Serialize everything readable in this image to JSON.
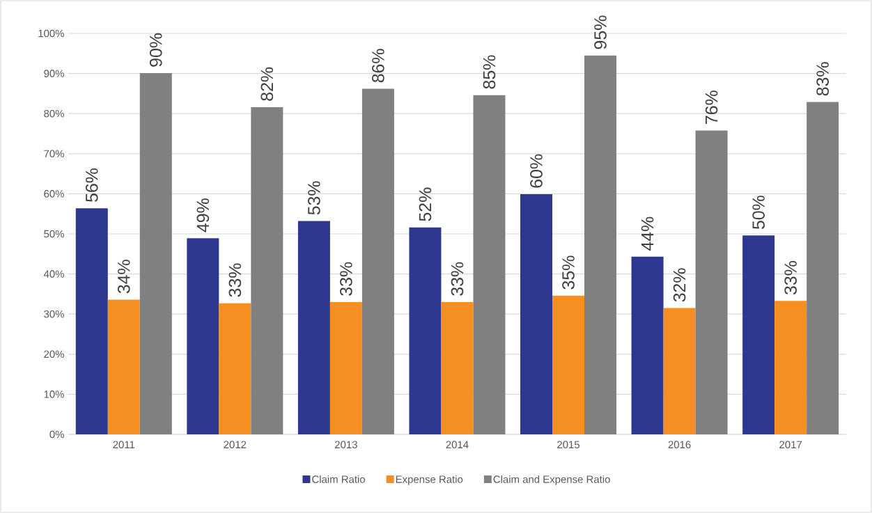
{
  "chart_data": {
    "type": "bar",
    "categories": [
      "2011",
      "2012",
      "2013",
      "2014",
      "2015",
      "2016",
      "2017"
    ],
    "series": [
      {
        "name": "Claim Ratio",
        "color": "#2e3790",
        "values": [
          56.4,
          48.9,
          53.2,
          51.6,
          59.9,
          44.3,
          49.6
        ],
        "value_labels": [
          "56%",
          "49%",
          "53%",
          "52%",
          "60%",
          "44%",
          "50%"
        ]
      },
      {
        "name": "Expense Ratio",
        "color": "#f58f22",
        "values": [
          33.6,
          32.7,
          33.0,
          33.0,
          34.6,
          31.5,
          33.3
        ],
        "value_labels": [
          "34%",
          "33%",
          "33%",
          "33%",
          "35%",
          "32%",
          "33%"
        ]
      },
      {
        "name": "Claim and Expense Ratio",
        "color": "#808080",
        "values": [
          90.1,
          81.6,
          86.2,
          84.6,
          94.5,
          75.8,
          82.9
        ],
        "value_labels": [
          "90%",
          "82%",
          "86%",
          "85%",
          "95%",
          "76%",
          "83%"
        ]
      }
    ],
    "ylim": [
      0,
      100
    ],
    "yticks": [
      {
        "value": 0,
        "label": "0%"
      },
      {
        "value": 10,
        "label": "10%"
      },
      {
        "value": 20,
        "label": "20%"
      },
      {
        "value": 30,
        "label": "30%"
      },
      {
        "value": 40,
        "label": "40%"
      },
      {
        "value": 50,
        "label": "50%"
      },
      {
        "value": 60,
        "label": "60%"
      },
      {
        "value": 70,
        "label": "70%"
      },
      {
        "value": 80,
        "label": "80%"
      },
      {
        "value": 90,
        "label": "90%"
      },
      {
        "value": 100,
        "label": "100%"
      }
    ],
    "grid": "y",
    "legend": "bottom"
  }
}
